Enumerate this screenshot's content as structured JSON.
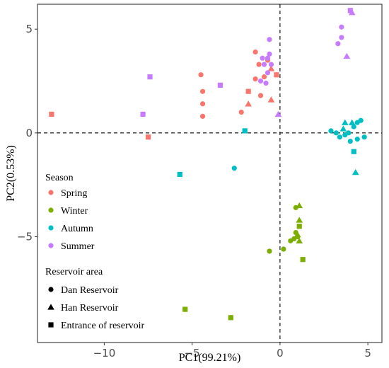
{
  "chart_data": {
    "type": "scatter",
    "title": "",
    "xlabel": "PC1(99.21%)",
    "ylabel": "PC2(0.53%)",
    "xlim": [
      -13.8,
      5.8
    ],
    "ylim": [
      -10.1,
      6.2
    ],
    "xticks": [
      -10,
      -5,
      0,
      5
    ],
    "yticks": [
      -5,
      0,
      5
    ],
    "xtick_labels": [
      "−10",
      "−5",
      "0",
      "5"
    ],
    "ytick_labels": [
      "−5",
      "0",
      "5"
    ],
    "grid": false,
    "reference_lines": {
      "x": 0,
      "y": 0,
      "style": "dashed"
    },
    "legend": {
      "placement": "left",
      "season_title": "Season",
      "seasons": [
        {
          "name": "Spring",
          "color": "#F8766D"
        },
        {
          "name": "Winter",
          "color": "#7CAE00"
        },
        {
          "name": "Autumn",
          "color": "#00BFC4"
        },
        {
          "name": "Summer",
          "color": "#C77CFF"
        }
      ],
      "area_title": "Reservoir area",
      "areas": [
        {
          "name": "Dan Reservoir",
          "shape": "circle"
        },
        {
          "name": "Han Reservoir",
          "shape": "triangle"
        },
        {
          "name": "Entrance of reservoir",
          "shape": "square"
        }
      ]
    },
    "points": [
      {
        "season": "Spring",
        "area": "Dan Reservoir",
        "x": -4.5,
        "y": 2.8
      },
      {
        "season": "Spring",
        "area": "Dan Reservoir",
        "x": -4.4,
        "y": 2.0
      },
      {
        "season": "Spring",
        "area": "Dan Reservoir",
        "x": -4.4,
        "y": 1.4
      },
      {
        "season": "Spring",
        "area": "Dan Reservoir",
        "x": -4.4,
        "y": 0.8
      },
      {
        "season": "Spring",
        "area": "Dan Reservoir",
        "x": -2.2,
        "y": 1.0
      },
      {
        "season": "Spring",
        "area": "Dan Reservoir",
        "x": -1.4,
        "y": 3.9
      },
      {
        "season": "Spring",
        "area": "Dan Reservoir",
        "x": -1.2,
        "y": 3.3
      },
      {
        "season": "Spring",
        "area": "Dan Reservoir",
        "x": -1.4,
        "y": 2.6
      },
      {
        "season": "Spring",
        "area": "Dan Reservoir",
        "x": -1.1,
        "y": 1.8
      },
      {
        "season": "Spring",
        "area": "Dan Reservoir",
        "x": -0.7,
        "y": 3.5
      },
      {
        "season": "Spring",
        "area": "Dan Reservoir",
        "x": -0.9,
        "y": 2.7
      },
      {
        "season": "Spring",
        "area": "Han Reservoir",
        "x": -1.8,
        "y": 1.4
      },
      {
        "season": "Spring",
        "area": "Han Reservoir",
        "x": -0.5,
        "y": 3.1
      },
      {
        "season": "Spring",
        "area": "Han Reservoir",
        "x": -0.5,
        "y": 1.6
      },
      {
        "season": "Spring",
        "area": "Entrance of reservoir",
        "x": -13.0,
        "y": 0.9
      },
      {
        "season": "Spring",
        "area": "Entrance of reservoir",
        "x": -7.5,
        "y": -0.2
      },
      {
        "season": "Spring",
        "area": "Entrance of reservoir",
        "x": -1.8,
        "y": 2.0
      },
      {
        "season": "Spring",
        "area": "Entrance of reservoir",
        "x": -0.2,
        "y": 2.8
      },
      {
        "season": "Winter",
        "area": "Dan Reservoir",
        "x": -0.6,
        "y": -5.7
      },
      {
        "season": "Winter",
        "area": "Dan Reservoir",
        "x": 0.2,
        "y": -5.6
      },
      {
        "season": "Winter",
        "area": "Dan Reservoir",
        "x": 0.6,
        "y": -5.2
      },
      {
        "season": "Winter",
        "area": "Dan Reservoir",
        "x": 0.8,
        "y": -5.1
      },
      {
        "season": "Winter",
        "area": "Dan Reservoir",
        "x": 0.9,
        "y": -4.8
      },
      {
        "season": "Winter",
        "area": "Dan Reservoir",
        "x": 1.0,
        "y": -5.0
      },
      {
        "season": "Winter",
        "area": "Dan Reservoir",
        "x": 0.9,
        "y": -3.6
      },
      {
        "season": "Winter",
        "area": "Han Reservoir",
        "x": 1.1,
        "y": -3.5
      },
      {
        "season": "Winter",
        "area": "Han Reservoir",
        "x": 1.1,
        "y": -4.2
      },
      {
        "season": "Winter",
        "area": "Han Reservoir",
        "x": 1.0,
        "y": -4.9
      },
      {
        "season": "Winter",
        "area": "Han Reservoir",
        "x": 1.1,
        "y": -5.2
      },
      {
        "season": "Winter",
        "area": "Entrance of reservoir",
        "x": 1.1,
        "y": -4.5
      },
      {
        "season": "Winter",
        "area": "Entrance of reservoir",
        "x": 1.3,
        "y": -6.1
      },
      {
        "season": "Winter",
        "area": "Entrance of reservoir",
        "x": -5.4,
        "y": -8.5
      },
      {
        "season": "Winter",
        "area": "Entrance of reservoir",
        "x": -2.8,
        "y": -8.9
      },
      {
        "season": "Autumn",
        "area": "Dan Reservoir",
        "x": -2.6,
        "y": -1.7
      },
      {
        "season": "Autumn",
        "area": "Dan Reservoir",
        "x": 2.9,
        "y": 0.1
      },
      {
        "season": "Autumn",
        "area": "Dan Reservoir",
        "x": 3.2,
        "y": 0.0
      },
      {
        "season": "Autumn",
        "area": "Dan Reservoir",
        "x": 3.4,
        "y": -0.2
      },
      {
        "season": "Autumn",
        "area": "Dan Reservoir",
        "x": 3.7,
        "y": -0.1
      },
      {
        "season": "Autumn",
        "area": "Dan Reservoir",
        "x": 3.9,
        "y": 0.0
      },
      {
        "season": "Autumn",
        "area": "Dan Reservoir",
        "x": 4.0,
        "y": -0.4
      },
      {
        "season": "Autumn",
        "area": "Dan Reservoir",
        "x": 4.2,
        "y": 0.3
      },
      {
        "season": "Autumn",
        "area": "Dan Reservoir",
        "x": 4.4,
        "y": 0.5
      },
      {
        "season": "Autumn",
        "area": "Dan Reservoir",
        "x": 4.6,
        "y": 0.6
      },
      {
        "season": "Autumn",
        "area": "Dan Reservoir",
        "x": 4.4,
        "y": -0.3
      },
      {
        "season": "Autumn",
        "area": "Dan Reservoir",
        "x": 4.8,
        "y": -0.2
      },
      {
        "season": "Autumn",
        "area": "Han Reservoir",
        "x": 3.7,
        "y": 0.5
      },
      {
        "season": "Autumn",
        "area": "Han Reservoir",
        "x": 3.6,
        "y": 0.2
      },
      {
        "season": "Autumn",
        "area": "Han Reservoir",
        "x": 4.1,
        "y": 0.5
      },
      {
        "season": "Autumn",
        "area": "Han Reservoir",
        "x": 4.3,
        "y": -1.9
      },
      {
        "season": "Autumn",
        "area": "Entrance of reservoir",
        "x": -2.0,
        "y": 0.1
      },
      {
        "season": "Autumn",
        "area": "Entrance of reservoir",
        "x": -5.7,
        "y": -2.0
      },
      {
        "season": "Autumn",
        "area": "Entrance of reservoir",
        "x": 4.2,
        "y": -0.9
      },
      {
        "season": "Summer",
        "area": "Dan Reservoir",
        "x": -1.0,
        "y": 3.6
      },
      {
        "season": "Summer",
        "area": "Dan Reservoir",
        "x": -0.9,
        "y": 3.3
      },
      {
        "season": "Summer",
        "area": "Dan Reservoir",
        "x": -0.8,
        "y": 2.4
      },
      {
        "season": "Summer",
        "area": "Dan Reservoir",
        "x": -0.7,
        "y": 3.6
      },
      {
        "season": "Summer",
        "area": "Dan Reservoir",
        "x": -0.7,
        "y": 2.9
      },
      {
        "season": "Summer",
        "area": "Dan Reservoir",
        "x": -0.6,
        "y": 4.5
      },
      {
        "season": "Summer",
        "area": "Dan Reservoir",
        "x": -0.6,
        "y": 3.8
      },
      {
        "season": "Summer",
        "area": "Dan Reservoir",
        "x": -0.5,
        "y": 3.3
      },
      {
        "season": "Summer",
        "area": "Dan Reservoir",
        "x": -1.1,
        "y": 2.5
      },
      {
        "season": "Summer",
        "area": "Dan Reservoir",
        "x": 3.3,
        "y": 4.3
      },
      {
        "season": "Summer",
        "area": "Dan Reservoir",
        "x": 3.5,
        "y": 5.1
      },
      {
        "season": "Summer",
        "area": "Dan Reservoir",
        "x": 3.5,
        "y": 4.6
      },
      {
        "season": "Summer",
        "area": "Han Reservoir",
        "x": -0.1,
        "y": 0.9
      },
      {
        "season": "Summer",
        "area": "Han Reservoir",
        "x": 3.8,
        "y": 3.7
      },
      {
        "season": "Summer",
        "area": "Han Reservoir",
        "x": 4.1,
        "y": 5.8
      },
      {
        "season": "Summer",
        "area": "Entrance of reservoir",
        "x": -7.4,
        "y": 2.7
      },
      {
        "season": "Summer",
        "area": "Entrance of reservoir",
        "x": -7.8,
        "y": 0.9
      },
      {
        "season": "Summer",
        "area": "Entrance of reservoir",
        "x": -3.4,
        "y": 2.3
      },
      {
        "season": "Summer",
        "area": "Entrance of reservoir",
        "x": 4.0,
        "y": 5.9
      }
    ]
  }
}
